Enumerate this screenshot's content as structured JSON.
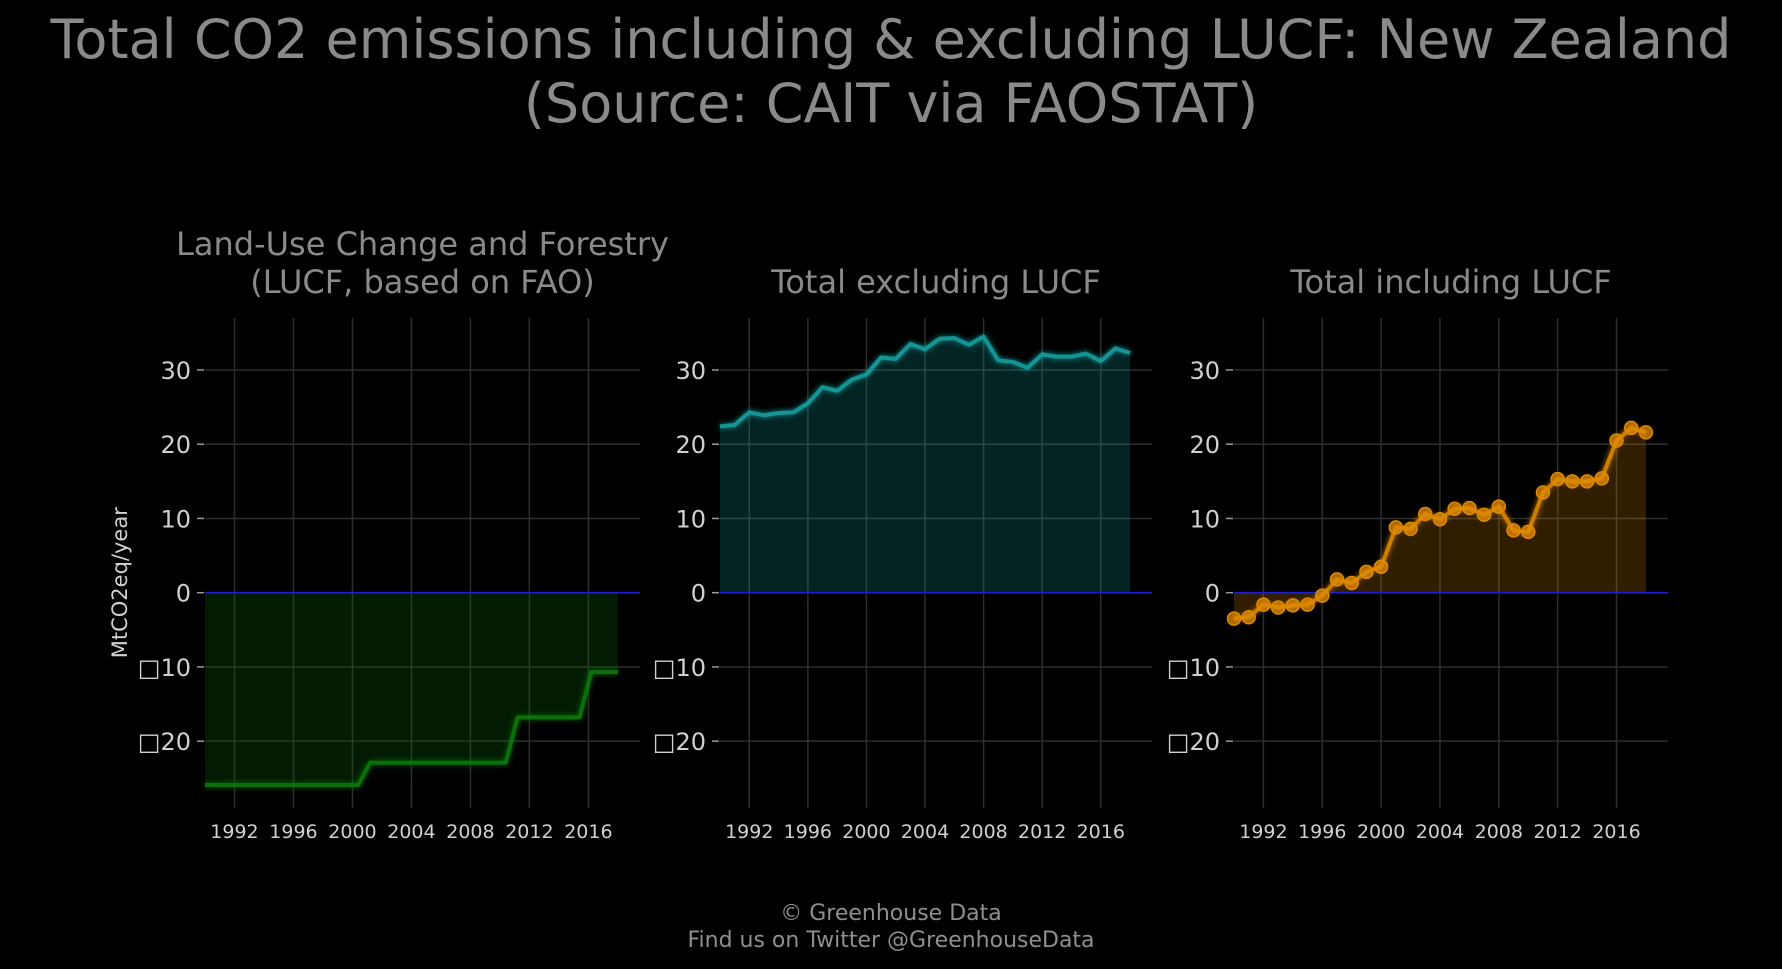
{
  "title": {
    "line1": "Total CO2 emissions including & excluding LUCF: New Zealand",
    "line2": "(Source: CAIT via FAOSTAT)"
  },
  "footer": {
    "line1": "© Greenhouse Data",
    "line2": "Find us on Twitter @GreenhouseData"
  },
  "chart_data": [
    {
      "type": "area",
      "title_lines": [
        "Land-Use Change and Forestry",
        "(LUCF, based on FAO)"
      ],
      "ylabel": "MtCO2eq/year",
      "color": "#0a7a0a",
      "show_points": false,
      "step": true,
      "ylim": [
        -29,
        37
      ],
      "xlim": [
        1990,
        2019.5
      ],
      "x_ticks": [
        1992,
        1996,
        2000,
        2004,
        2008,
        2012,
        2016
      ],
      "y_ticks": [
        30,
        20,
        10,
        0,
        -10,
        -20
      ],
      "y_tick_labels": [
        "30",
        "20",
        "10",
        "0",
        "□10",
        "□20"
      ],
      "x": [
        1990,
        1991,
        1992,
        1993,
        1994,
        1995,
        1996,
        1997,
        1998,
        1999,
        2000,
        2001,
        2002,
        2003,
        2004,
        2005,
        2006,
        2007,
        2008,
        2009,
        2010,
        2011,
        2012,
        2013,
        2014,
        2015,
        2016,
        2017,
        2018
      ],
      "values": [
        -25.9,
        -25.9,
        -25.9,
        -25.9,
        -25.9,
        -25.9,
        -25.9,
        -25.9,
        -25.9,
        -25.9,
        -25.9,
        -22.9,
        -22.9,
        -22.9,
        -22.9,
        -22.9,
        -22.9,
        -22.9,
        -22.9,
        -22.9,
        -22.9,
        -16.8,
        -16.8,
        -16.8,
        -16.8,
        -16.8,
        -10.7,
        -10.7,
        -10.7
      ]
    },
    {
      "type": "area",
      "title_lines": [
        "Total excluding LUCF"
      ],
      "color": "#13a3a3",
      "show_points": false,
      "step": false,
      "ylim": [
        -29,
        37
      ],
      "xlim": [
        1990,
        2019.5
      ],
      "x_ticks": [
        1992,
        1996,
        2000,
        2004,
        2008,
        2012,
        2016
      ],
      "y_ticks": [
        30,
        20,
        10,
        0,
        -10,
        -20
      ],
      "y_tick_labels": [
        "30",
        "20",
        "10",
        "0",
        "□10",
        "□20"
      ],
      "x": [
        1990,
        1991,
        1992,
        1993,
        1994,
        1995,
        1996,
        1997,
        1998,
        1999,
        2000,
        2001,
        2002,
        2003,
        2004,
        2005,
        2006,
        2007,
        2008,
        2009,
        2010,
        2011,
        2012,
        2013,
        2014,
        2015,
        2016,
        2017,
        2018
      ],
      "values": [
        22.4,
        22.6,
        24.3,
        23.9,
        24.2,
        24.3,
        25.5,
        27.7,
        27.2,
        28.7,
        29.4,
        31.7,
        31.5,
        33.5,
        32.8,
        34.2,
        34.3,
        33.4,
        34.5,
        31.3,
        31.1,
        30.3,
        32.1,
        31.8,
        31.8,
        32.2,
        31.2,
        32.9,
        32.3
      ]
    },
    {
      "type": "area",
      "title_lines": [
        "Total including LUCF"
      ],
      "color": "#e08a00",
      "show_points": true,
      "step": false,
      "ylim": [
        -29,
        37
      ],
      "xlim": [
        1990,
        2019.5
      ],
      "x_ticks": [
        1992,
        1996,
        2000,
        2004,
        2008,
        2012,
        2016
      ],
      "y_ticks": [
        30,
        20,
        10,
        0,
        -10,
        -20
      ],
      "y_tick_labels": [
        "30",
        "20",
        "10",
        "0",
        "□10",
        "□20"
      ],
      "x": [
        1990,
        1991,
        1992,
        1993,
        1994,
        1995,
        1996,
        1997,
        1998,
        1999,
        2000,
        2001,
        2002,
        2003,
        2004,
        2005,
        2006,
        2007,
        2008,
        2009,
        2010,
        2011,
        2012,
        2013,
        2014,
        2015,
        2016,
        2017,
        2018
      ],
      "values": [
        -3.5,
        -3.3,
        -1.6,
        -2.0,
        -1.7,
        -1.6,
        -0.4,
        1.8,
        1.3,
        2.8,
        3.5,
        8.8,
        8.6,
        10.6,
        9.9,
        11.3,
        11.4,
        10.5,
        11.6,
        8.4,
        8.2,
        13.5,
        15.3,
        15.0,
        15.0,
        15.4,
        20.5,
        22.2,
        21.6
      ]
    }
  ]
}
